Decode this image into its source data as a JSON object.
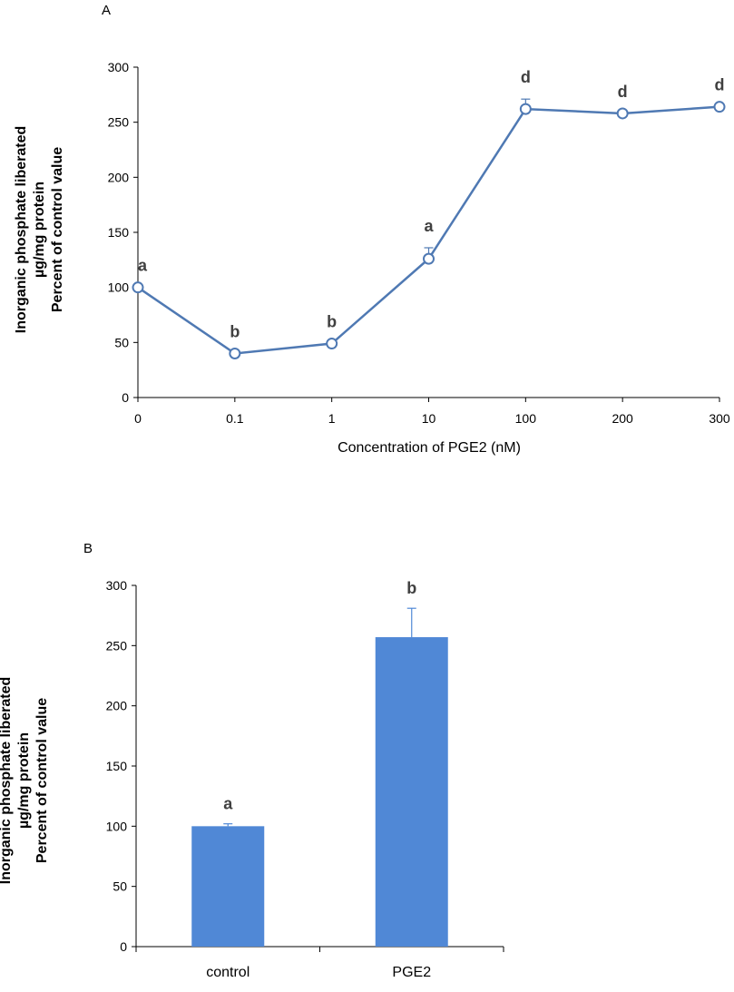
{
  "colors": {
    "line": "#4f79b3",
    "bar": "#5088d6",
    "axis": "#000000",
    "sig_label": "#404040"
  },
  "chart_data": [
    {
      "panel": "A",
      "type": "line",
      "x": [
        "0",
        "0.1",
        "1",
        "10",
        "100",
        "200",
        "300"
      ],
      "series": [
        {
          "values": [
            100,
            40,
            49,
            126,
            262,
            258,
            264
          ],
          "errors": [
            0,
            0,
            0,
            10,
            9,
            0,
            0
          ],
          "labels": [
            "a",
            "b",
            "b",
            "a",
            "d",
            "d",
            "d"
          ]
        }
      ],
      "ylim": [
        0,
        300
      ],
      "yticks": [
        0,
        50,
        100,
        150,
        200,
        250,
        300
      ],
      "xlabel": "Concentration of PGE2 (nM)",
      "ylabel": [
        "Inorganic phosphate liberated",
        "µg/mg protein",
        "Percent of control value"
      ],
      "marker": "open-circle",
      "grid": false
    },
    {
      "panel": "B",
      "type": "bar",
      "categories": [
        "control",
        "PGE2"
      ],
      "series": [
        {
          "values": [
            100,
            257
          ],
          "errors": [
            2,
            24
          ],
          "labels": [
            "a",
            "b"
          ]
        }
      ],
      "ylim": [
        0,
        300
      ],
      "yticks": [
        0,
        50,
        100,
        150,
        200,
        250,
        300
      ],
      "xlabel": "",
      "ylabel": [
        "Inorganic phosphate liberated",
        "µg/mg protein",
        "Percent of control value"
      ],
      "grid": false
    }
  ]
}
